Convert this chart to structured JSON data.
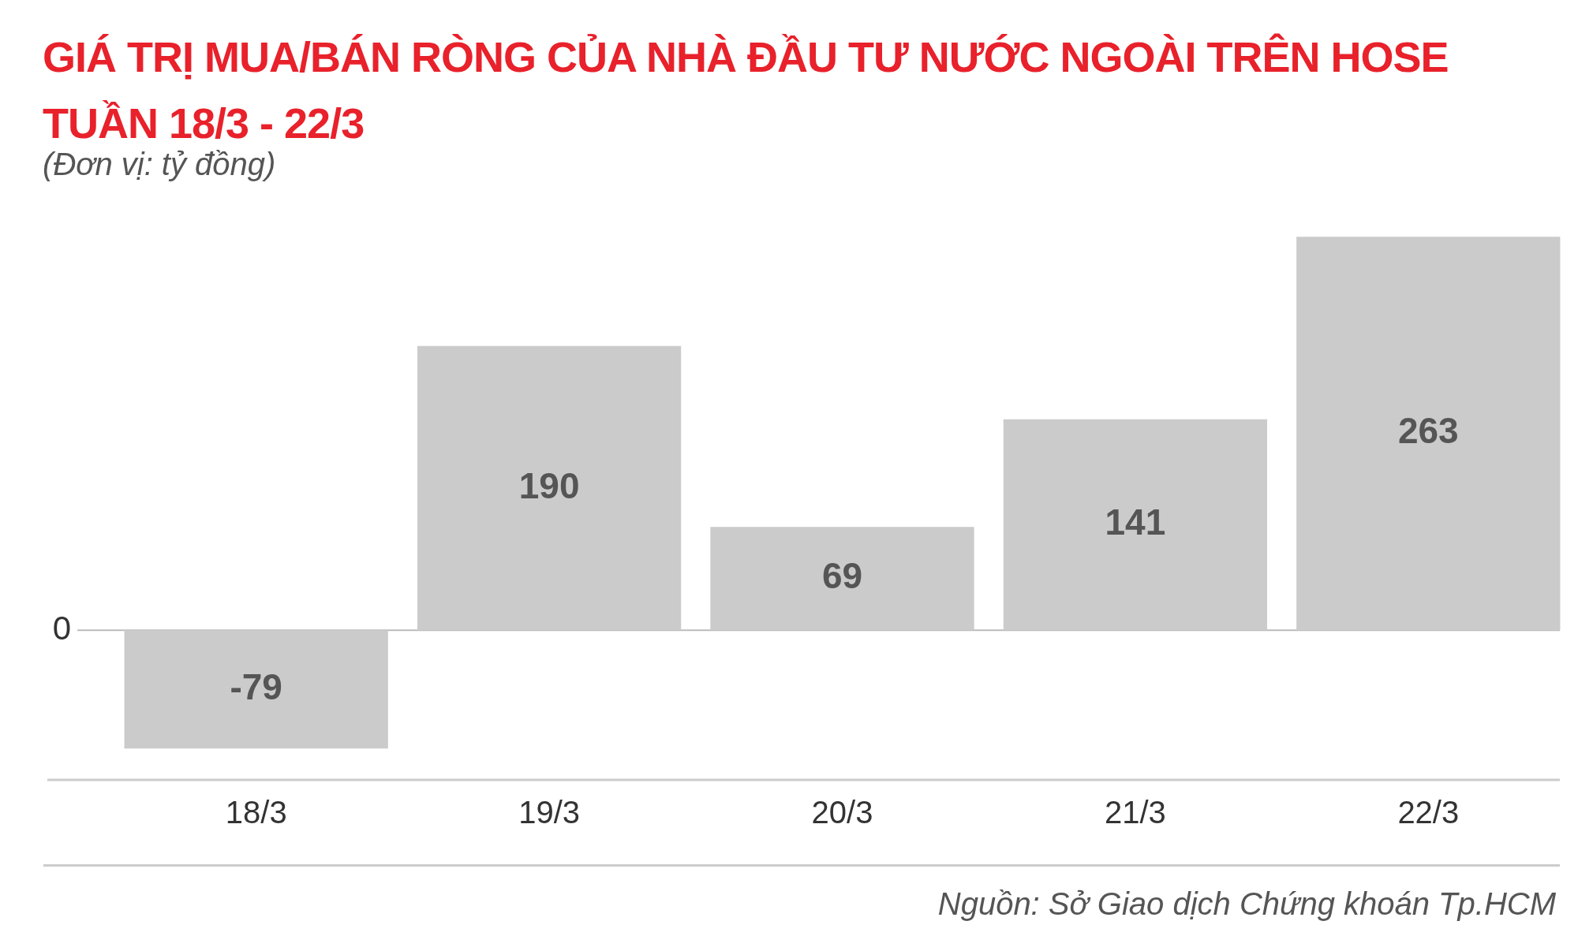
{
  "chart_data": {
    "type": "bar",
    "title": "GIÁ TRỊ MUA/BÁN RÒNG CỦA NHÀ ĐẦU TƯ NƯỚC NGOÀI TRÊN HOSE TUẦN 18/3 - 22/3",
    "subtitle": "(Đơn vị: tỷ đồng)",
    "categories": [
      "18/3",
      "19/3",
      "20/3",
      "21/3",
      "22/3"
    ],
    "values": [
      -79,
      190,
      69,
      141,
      263
    ],
    "color": "#cccbcb",
    "ref_lines": [
      {
        "axis": "y",
        "value": 0,
        "label": "0",
        "color": "#bbbbbb"
      }
    ],
    "data_labels": true,
    "annotations": [
      "Nguồn: Sở Giao dịch Chứng khoán Tp.HCM"
    ]
  }
}
